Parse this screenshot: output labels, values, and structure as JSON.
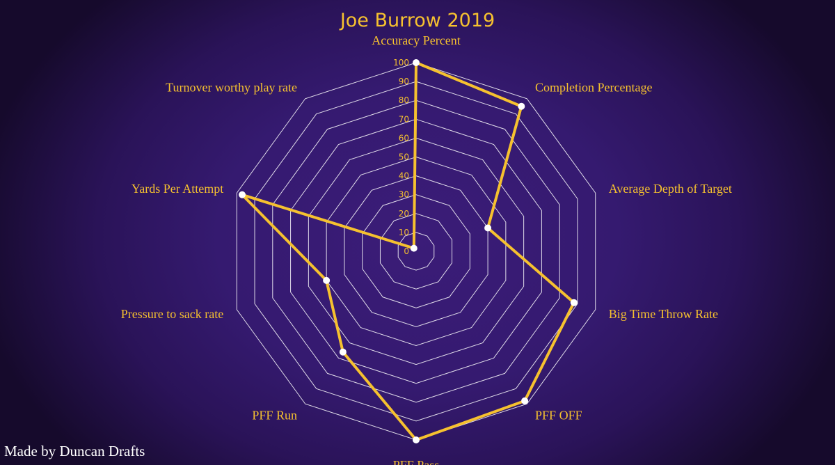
{
  "chart_data": {
    "type": "radar",
    "title": "Joe Burrow 2019",
    "credit": "Made by Duncan Drafts",
    "scale_max": 100,
    "radial_ticks": [
      0,
      10,
      20,
      30,
      40,
      50,
      60,
      70,
      80,
      90,
      100
    ],
    "grid": true,
    "categories": [
      "Accuracy Percent",
      "Completion Percentage",
      "Average Depth of Target",
      "Big Time Throw Rate",
      "PFF OFF",
      "PFF Pass",
      "PFF Run",
      "Pressure to sack rate",
      "Yards Per Attempt",
      "Turnover worthy play rate"
    ],
    "series": [
      {
        "values": [
          100,
          95,
          40,
          88,
          98,
          100,
          66,
          50,
          97,
          2
        ]
      }
    ],
    "colors": {
      "line": "#f6c12f",
      "grid": "#ffffff",
      "points": "#ffffff",
      "text": "#f6c12f"
    }
  }
}
